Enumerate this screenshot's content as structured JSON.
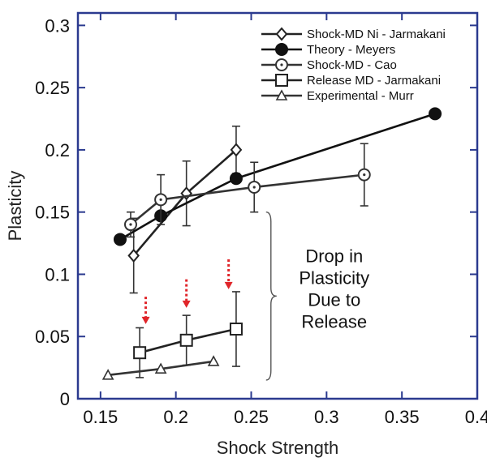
{
  "chart_data": {
    "type": "line",
    "xlabel": "Shock Strength",
    "ylabel": "Plasticity",
    "xlim": [
      0.135,
      0.4
    ],
    "ylim": [
      0,
      0.31
    ],
    "x_ticks": [
      0.15,
      0.2,
      0.25,
      0.3,
      0.35,
      0.4
    ],
    "x_tick_labels": [
      "0.15",
      "0.2",
      "0.25",
      "0.3",
      "0.35",
      "0.4"
    ],
    "y_ticks": [
      0,
      0.05,
      0.1,
      0.15,
      0.2,
      0.25,
      0.3
    ],
    "y_tick_labels": [
      "0",
      "0.05",
      "0.1",
      "0.15",
      "0.2",
      "0.25",
      "0.3"
    ],
    "grid": false,
    "legend_position": "top-right",
    "frame_color": "#2b3a8f",
    "series": [
      {
        "name": "Shock-MD Ni - Jarmakani",
        "marker": "diamond-open",
        "color": "#222222",
        "points": [
          {
            "x": 0.172,
            "y": 0.115,
            "err": 0.03
          },
          {
            "x": 0.207,
            "y": 0.165,
            "err": 0.026
          },
          {
            "x": 0.24,
            "y": 0.2,
            "err": 0.019
          }
        ]
      },
      {
        "name": "Theory - Meyers",
        "marker": "circle-filled",
        "color": "#111111",
        "points": [
          {
            "x": 0.163,
            "y": 0.128
          },
          {
            "x": 0.19,
            "y": 0.147
          },
          {
            "x": 0.24,
            "y": 0.177
          },
          {
            "x": 0.372,
            "y": 0.229
          }
        ]
      },
      {
        "name": "Shock-MD - Cao",
        "marker": "circle-dot",
        "color": "#333333",
        "points": [
          {
            "x": 0.17,
            "y": 0.14,
            "err": 0.01
          },
          {
            "x": 0.19,
            "y": 0.16,
            "err": 0.02
          },
          {
            "x": 0.252,
            "y": 0.17,
            "err": 0.02
          },
          {
            "x": 0.325,
            "y": 0.18,
            "err": 0.025
          }
        ]
      },
      {
        "name": "Release MD - Jarmakani",
        "marker": "square-open",
        "color": "#222222",
        "points": [
          {
            "x": 0.176,
            "y": 0.037,
            "err": 0.02
          },
          {
            "x": 0.207,
            "y": 0.047,
            "err": 0.02
          },
          {
            "x": 0.24,
            "y": 0.056,
            "err": 0.03
          }
        ]
      },
      {
        "name": "Experimental - Murr",
        "marker": "triangle-open",
        "color": "#333333",
        "points": [
          {
            "x": 0.155,
            "y": 0.019
          },
          {
            "x": 0.19,
            "y": 0.024
          },
          {
            "x": 0.225,
            "y": 0.03
          }
        ]
      }
    ],
    "annotation": {
      "lines": [
        "Drop in",
        "Plasticity",
        "Due to",
        "Release"
      ],
      "brace_y": [
        0.015,
        0.15
      ],
      "brace_x": 0.262
    },
    "arrows": {
      "color": "#e0252a",
      "items": [
        {
          "x": 0.18,
          "y_top": 0.082,
          "y_bottom": 0.06
        },
        {
          "x": 0.207,
          "y_top": 0.096,
          "y_bottom": 0.073
        },
        {
          "x": 0.235,
          "y_top": 0.112,
          "y_bottom": 0.088
        }
      ]
    }
  }
}
